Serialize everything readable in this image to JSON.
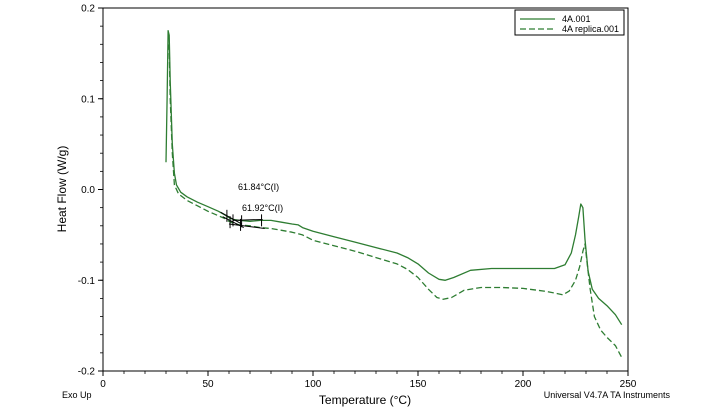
{
  "chart_data": {
    "type": "line",
    "xlabel": "Temperature (°C)",
    "ylabel": "Heat Flow (W/g)",
    "xlim": [
      0,
      250
    ],
    "ylim": [
      -0.2,
      0.2
    ],
    "x_ticks": [
      "0",
      "50",
      "100",
      "150",
      "200",
      "250"
    ],
    "x_tick_values": [
      0,
      50,
      100,
      150,
      200,
      250
    ],
    "y_ticks": [
      "0.2",
      "0.1",
      "0.0",
      "-0.1",
      "-0.2"
    ],
    "y_tick_values": [
      0.2,
      0.1,
      0.0,
      -0.1,
      -0.2
    ],
    "grid": false,
    "legend_position": "top-right",
    "series": [
      {
        "name": "4A.001",
        "style": "solid",
        "color": "#2e7d32",
        "points": [
          [
            30,
            0.03
          ],
          [
            30.5,
            0.1
          ],
          [
            31,
            0.175
          ],
          [
            31.5,
            0.17
          ],
          [
            32,
            0.12
          ],
          [
            33,
            0.05
          ],
          [
            34,
            0.018
          ],
          [
            35,
            0.005
          ],
          [
            37,
            -0.003
          ],
          [
            40,
            -0.008
          ],
          [
            45,
            -0.014
          ],
          [
            50,
            -0.019
          ],
          [
            55,
            -0.024
          ],
          [
            58,
            -0.028
          ],
          [
            60,
            -0.031
          ],
          [
            62,
            -0.033
          ],
          [
            65,
            -0.034
          ],
          [
            70,
            -0.035
          ],
          [
            75,
            -0.034
          ],
          [
            80,
            -0.034
          ],
          [
            85,
            -0.036
          ],
          [
            90,
            -0.038
          ],
          [
            93,
            -0.039
          ],
          [
            95,
            -0.042
          ],
          [
            100,
            -0.046
          ],
          [
            110,
            -0.052
          ],
          [
            120,
            -0.058
          ],
          [
            130,
            -0.064
          ],
          [
            140,
            -0.07
          ],
          [
            145,
            -0.075
          ],
          [
            150,
            -0.082
          ],
          [
            155,
            -0.092
          ],
          [
            160,
            -0.099
          ],
          [
            163,
            -0.1
          ],
          [
            167,
            -0.097
          ],
          [
            175,
            -0.089
          ],
          [
            185,
            -0.087
          ],
          [
            200,
            -0.087
          ],
          [
            210,
            -0.087
          ],
          [
            215,
            -0.087
          ],
          [
            220,
            -0.083
          ],
          [
            223,
            -0.07
          ],
          [
            225,
            -0.05
          ],
          [
            226.5,
            -0.03
          ],
          [
            227.5,
            -0.016
          ],
          [
            228.5,
            -0.02
          ],
          [
            229.5,
            -0.055
          ],
          [
            231,
            -0.09
          ],
          [
            233,
            -0.11
          ],
          [
            236,
            -0.12
          ],
          [
            240,
            -0.128
          ],
          [
            244,
            -0.138
          ],
          [
            247,
            -0.149
          ]
        ]
      },
      {
        "name": "4A replica.001",
        "style": "dashed",
        "color": "#2e7d32",
        "points": [
          [
            31,
            0.16
          ],
          [
            31.5,
            0.155
          ],
          [
            32,
            0.1
          ],
          [
            33,
            0.04
          ],
          [
            34,
            0.005
          ],
          [
            36,
            -0.005
          ],
          [
            40,
            -0.012
          ],
          [
            45,
            -0.018
          ],
          [
            50,
            -0.024
          ],
          [
            55,
            -0.029
          ],
          [
            58,
            -0.032
          ],
          [
            60,
            -0.035
          ],
          [
            62,
            -0.037
          ],
          [
            65,
            -0.039
          ],
          [
            70,
            -0.04
          ],
          [
            75,
            -0.042
          ],
          [
            80,
            -0.043
          ],
          [
            85,
            -0.045
          ],
          [
            90,
            -0.047
          ],
          [
            95,
            -0.05
          ],
          [
            100,
            -0.056
          ],
          [
            110,
            -0.062
          ],
          [
            120,
            -0.068
          ],
          [
            130,
            -0.075
          ],
          [
            140,
            -0.082
          ],
          [
            145,
            -0.088
          ],
          [
            150,
            -0.097
          ],
          [
            155,
            -0.11
          ],
          [
            159,
            -0.119
          ],
          [
            162,
            -0.121
          ],
          [
            166,
            -0.119
          ],
          [
            172,
            -0.111
          ],
          [
            180,
            -0.108
          ],
          [
            190,
            -0.108
          ],
          [
            200,
            -0.109
          ],
          [
            210,
            -0.112
          ],
          [
            215,
            -0.114
          ],
          [
            219,
            -0.116
          ],
          [
            222,
            -0.112
          ],
          [
            225,
            -0.1
          ],
          [
            227,
            -0.085
          ],
          [
            228.5,
            -0.068
          ],
          [
            229.5,
            -0.06
          ],
          [
            230.5,
            -0.08
          ],
          [
            232,
            -0.11
          ],
          [
            234,
            -0.14
          ],
          [
            237,
            -0.155
          ],
          [
            240,
            -0.163
          ],
          [
            244,
            -0.172
          ],
          [
            247,
            -0.185
          ]
        ]
      }
    ],
    "annotations": [
      {
        "text": "61.84°C(I)",
        "x": 61.84,
        "y": -0.033
      },
      {
        "text": "61.92°C(I)",
        "x": 61.92,
        "y": -0.037
      }
    ]
  },
  "footer": {
    "left": "Exo Up",
    "right": "Universal V4.7A TA Instruments"
  }
}
